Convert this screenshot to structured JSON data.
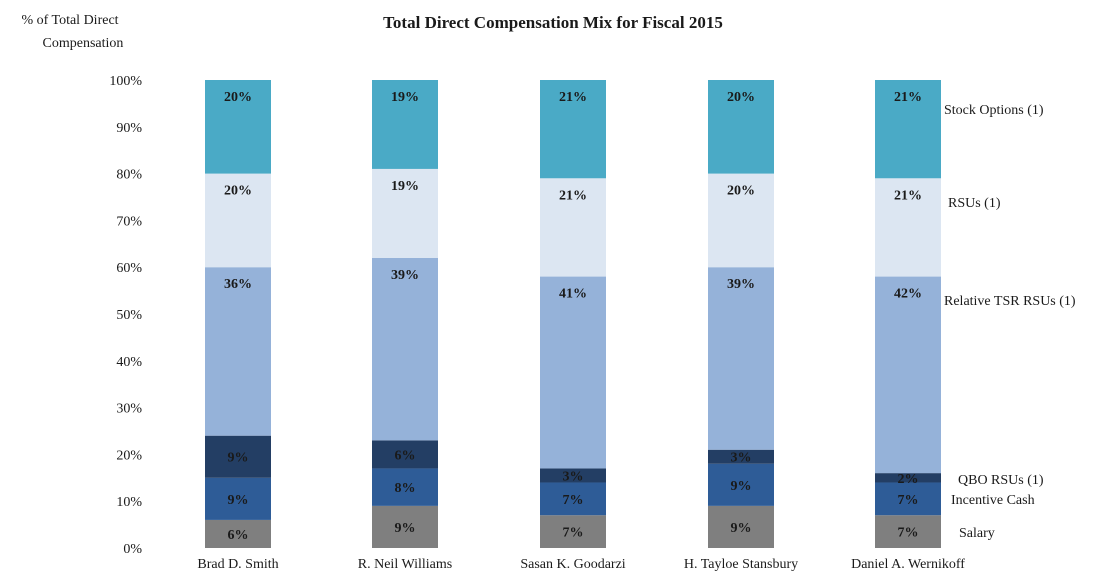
{
  "chart_data": {
    "type": "bar",
    "stacked": true,
    "title": "Total Direct Compensation  Mix for Fiscal 2015",
    "ylabel": [
      "% of Total Direct",
      "Compensation"
    ],
    "ylim": [
      0,
      100
    ],
    "y_ticks": [
      "0%",
      "10%",
      "20%",
      "30%",
      "40%",
      "50%",
      "60%",
      "70%",
      "80%",
      "90%",
      "100%"
    ],
    "categories": [
      "Brad D. Smith",
      "R. Neil Williams",
      "Sasan K. Goodarzi",
      "H. Tayloe Stansbury",
      "Daniel A. Wernikoff"
    ],
    "series": [
      {
        "name": "Salary",
        "values": [
          6,
          9,
          7,
          9,
          7
        ],
        "labels": [
          "6%",
          "9%",
          "7%",
          "9%",
          "7%"
        ],
        "color": "#7f7f7f",
        "label_color": "#ffffff"
      },
      {
        "name": "Incentive Cash",
        "values": [
          9,
          8,
          7,
          9,
          7
        ],
        "labels": [
          "9%",
          "8%",
          "7%",
          "9%",
          "7%"
        ],
        "color": "#2e5c97",
        "label_color": "#ffffff"
      },
      {
        "name": "QBO RSUs (1)",
        "values": [
          9,
          6,
          3,
          3,
          2
        ],
        "labels": [
          "9%",
          "6%",
          "3%",
          "3%",
          "2%"
        ],
        "color": "#233e64",
        "label_color": "#ffffff"
      },
      {
        "name": "Relative  TSR RSUs (1)",
        "values": [
          36,
          39,
          41,
          39,
          42
        ],
        "labels": [
          "36%",
          "39%",
          "41%",
          "39%",
          "42%"
        ],
        "color": "#95b2d9",
        "label_color": "#111111"
      },
      {
        "name": "RSUs (1)",
        "values": [
          20,
          19,
          21,
          20,
          21
        ],
        "labels": [
          "20%",
          "19%",
          "21%",
          "20%",
          "21%"
        ],
        "color": "#dce6f2",
        "label_color": "#111111"
      },
      {
        "name": "Stock Options (1)",
        "values": [
          20,
          19,
          21,
          20,
          21
        ],
        "labels": [
          "20%",
          "19%",
          "21%",
          "20%",
          "21%"
        ],
        "color": "#4aaac6",
        "label_color": "#111111"
      }
    ],
    "grid": false,
    "legend": "right (inline labels)"
  }
}
